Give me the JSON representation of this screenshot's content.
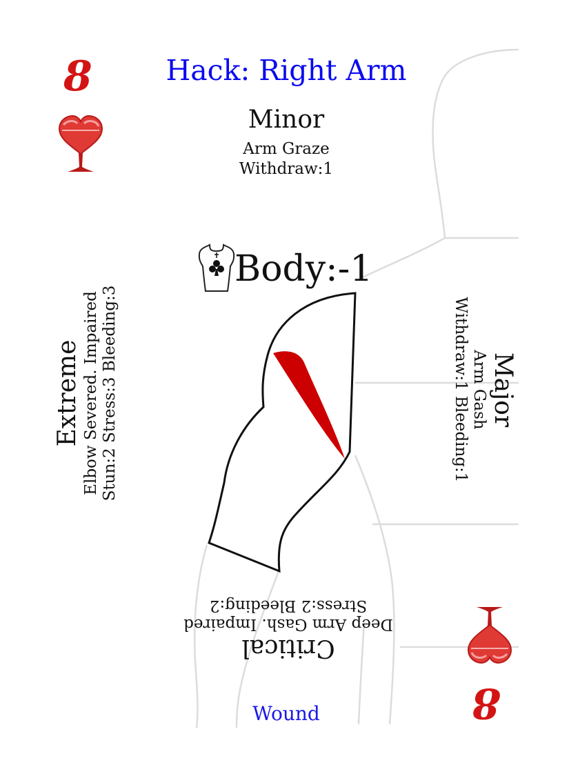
{
  "card": {
    "title": "Hack: Right Arm",
    "rank": "8",
    "suit_icon": "heart-goblet-icon",
    "body_icon": "torso-club-icon",
    "body_stat": "Body:-1",
    "footer": "Wound",
    "colors": {
      "title": "#0a0af0",
      "footer": "#1a1ae6",
      "rank": "#d31414",
      "wound_fill": "#cc0000"
    }
  },
  "minor": {
    "heading": "Minor",
    "line1": "Arm Graze",
    "line2": "Withdraw:1"
  },
  "major": {
    "heading": "Major",
    "line1": "Arm Gash",
    "line2": "Withdraw:1 Bleeding:1"
  },
  "critical": {
    "heading": "Critical",
    "line1": "Deep Arm Gash. Impaired",
    "line2": "Stress:2 Bleeding:2"
  },
  "extreme": {
    "heading": "Extreme",
    "line1": "Elbow Severed. Impaired",
    "line2": "Stun:2 Stress:3 Bleeding:3"
  }
}
